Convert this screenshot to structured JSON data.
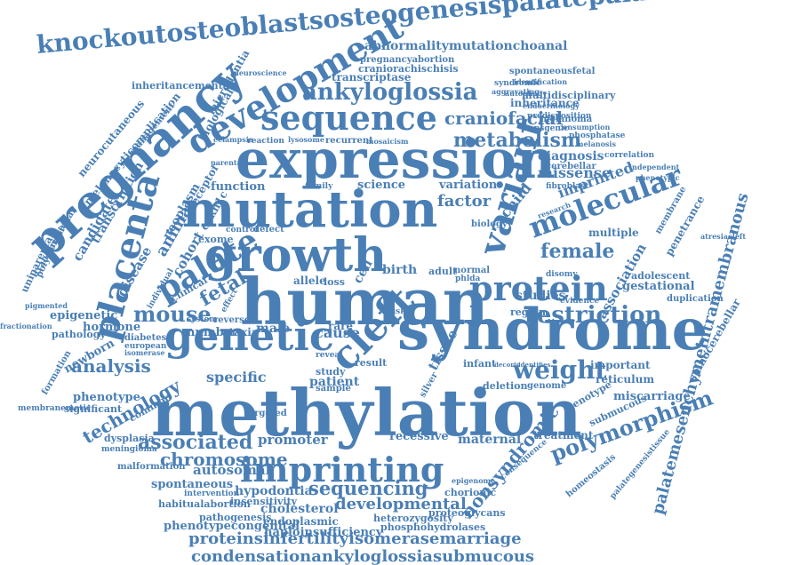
{
  "word_cloud": {
    "color": "#4a7fb5",
    "words": [
      "knockoutosteoblastsosteogenesispalatepalate",
      "abnormalitymutationchoanal",
      "pregnancyabortion",
      "craniorachischisis",
      "spontaneousfetal",
      "identification",
      "development",
      "ankyloglossia",
      "transcriptase",
      "syndromic",
      "aggravating",
      "autophagy",
      "inheritancemental",
      "neuroscience",
      "microdontia",
      "multidisciplinary",
      "inheritance",
      "endocrinology",
      "predisposition",
      "melanoma",
      "consumption",
      "phosphatase",
      "melanosis",
      "correlation",
      "independent",
      "phenotypic",
      "sequence",
      "craniofacial",
      "metabolism",
      "pregnancy",
      "expression",
      "eclampsia",
      "reaction",
      "lysosome",
      "recurrent",
      "mosaicism",
      "transgenic",
      "diagnosis",
      "missense",
      "cerebellar",
      "fibroblast",
      "neurocutaneous",
      "melanocyticomplication",
      "management",
      "transcription",
      "placenta",
      "biological",
      "neoplasm",
      "receptor",
      "cdkn1c",
      "parental",
      "variant",
      "mutation",
      "molecular",
      "function",
      "family",
      "science",
      "factor",
      "variation",
      "child",
      "imprinted",
      "research",
      "growth",
      "palate",
      "animal",
      "cohort",
      "exome",
      "control",
      "defect",
      "female",
      "membrane",
      "multiple",
      "penetrance",
      "transcriptional",
      "polymerase",
      "uniparental",
      "candidate",
      "disease",
      "fetal",
      "clinical",
      "individual",
      "human",
      "cell",
      "birth",
      "adult",
      "loss",
      "allele",
      "biology",
      "protein",
      "association",
      "adolescent",
      "gestational",
      "mouse",
      "system",
      "reverse",
      "effect",
      "restriction",
      "disomy",
      "studies",
      "evidence",
      "region",
      "duplication",
      "epigenetic",
      "hormone",
      "pathology",
      "diabetes",
      "european",
      "isomerase",
      "number",
      "ataxia",
      "male",
      "rare",
      "risk",
      "cause",
      "normal",
      "phlda",
      "cleft",
      "syndrome",
      "genetic",
      "tissue",
      "newborn",
      "formation",
      "analysis",
      "specific",
      "result",
      "reveal",
      "study",
      "patient",
      "silver",
      "infant",
      "decorin",
      "identifies",
      "weight",
      "important",
      "reticulum",
      "miscarriage",
      "genotype",
      "submucous",
      "spinocerebellar",
      "palatemesenchymeintramembranous",
      "phenotype",
      "significant",
      "common",
      "technology",
      "methylation",
      "deletion",
      "genome",
      "sample",
      "targeted",
      "associated",
      "chromosome",
      "promoter",
      "recessive",
      "maternal",
      "treatment",
      "polymorphism",
      "dysplasia",
      "meningioma",
      "malformation",
      "autosomal",
      "imprinting",
      "nonsyndromic",
      "consequence",
      "homeostasis",
      "palategenesistissue",
      "spontaneous",
      "intervention",
      "habitualabortion",
      "hypodontia",
      "insensitivity",
      "sequencing",
      "developmental",
      "chorionic",
      "epigenome",
      "pathogenesis",
      "cholesterol",
      "endoplasmic",
      "heterozygosity",
      "proteoglycans",
      "haploinsufficiency",
      "phosphohydrolases",
      "phenotypecongenital",
      "proteinsinfertilityisomerasemarriage",
      "condensationankyloglossiasubmucous",
      "atresiacleft",
      "membranemetic",
      "fractionation",
      "pigmented"
    ]
  }
}
